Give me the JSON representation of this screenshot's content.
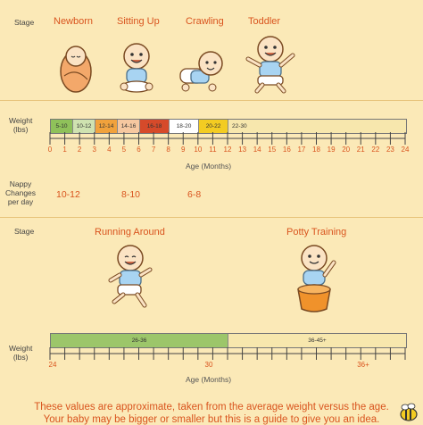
{
  "section1": {
    "stage_label": "Stage",
    "stages": [
      "Newborn",
      "Sitting Up",
      "Crawling",
      "Toddler"
    ],
    "weight_label_line1": "Weight",
    "weight_label_line2": "(lbs)",
    "weight_segments": [
      {
        "label": "5-10",
        "color": "#8fc15a"
      },
      {
        "label": "10-12",
        "color": "#cfe2b0"
      },
      {
        "label": "12-14",
        "color": "#f1a23c"
      },
      {
        "label": "14-16",
        "color": "#f6c8a0"
      },
      {
        "label": "16-18",
        "color": "#d64a2a"
      },
      {
        "label": "18-20",
        "color": "#ffffff"
      },
      {
        "label": "20-22",
        "color": "#f3cc22"
      },
      {
        "label": "22-30",
        "color": "#f7e7ad"
      }
    ],
    "ticks": [
      "0",
      "1",
      "2",
      "3",
      "4",
      "5",
      "6",
      "7",
      "8",
      "9",
      "10",
      "11",
      "12",
      "13",
      "14",
      "15",
      "16",
      "17",
      "18",
      "19",
      "20",
      "21",
      "22",
      "23",
      "24"
    ],
    "axis_label": "Age (Months)",
    "nappy_label_line1": "Nappy",
    "nappy_label_line2": "Changes",
    "nappy_label_line3": "per day",
    "nappy_counts": [
      "10-12",
      "8-10",
      "6-8"
    ]
  },
  "section2": {
    "stage_label": "Stage",
    "stages": [
      "Running Around",
      "Potty Training"
    ],
    "weight_label_line1": "Weight",
    "weight_label_line2": "(lbs)",
    "weight_segments": [
      {
        "label": "26-36",
        "color": "#9cc66a"
      },
      {
        "label": "36-45+",
        "color": "#f7e7ad"
      }
    ],
    "ticks": [
      "24",
      "30",
      "36+"
    ],
    "axis_label": "Age (Months)"
  },
  "footer": {
    "line1": "These values are approximate, taken from the average weight versus the age.",
    "line2": "Your baby may be bigger or smaller but this is a guide to give you an idea."
  },
  "icons": {
    "newborn": "swaddled-baby-icon",
    "sitting": "sitting-baby-icon",
    "crawling": "crawling-baby-icon",
    "toddler": "toddler-icon",
    "running": "running-child-icon",
    "potty": "potty-child-icon",
    "bee": "bee-icon"
  }
}
